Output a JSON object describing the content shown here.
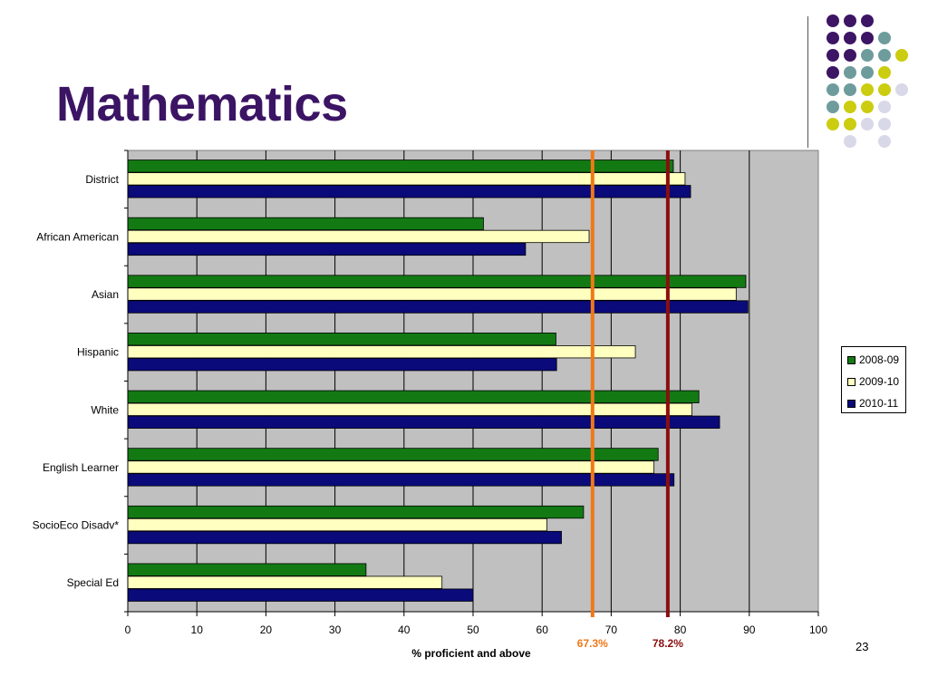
{
  "slide": {
    "title": "Mathematics",
    "page_number": "23"
  },
  "chart_data": {
    "type": "bar",
    "orientation": "horizontal",
    "categories": [
      "District",
      "African American",
      "Asian",
      "Hispanic",
      "White",
      "English Learner",
      "SocioEco Disadv*",
      "Special Ed"
    ],
    "series": [
      {
        "name": "2008-09",
        "color": "#137a13",
        "values": [
          79,
          51.5,
          89.5,
          62,
          82.7,
          76.8,
          66,
          34.5
        ]
      },
      {
        "name": "2009-10",
        "color": "#ffffc0",
        "values": [
          80.7,
          66.8,
          88.1,
          73.5,
          81.7,
          76.2,
          60.7,
          45.5
        ]
      },
      {
        "name": "2010-11",
        "color": "#0a0a7a",
        "values": [
          81.5,
          57.6,
          89.8,
          62.1,
          85.7,
          79.1,
          62.8,
          50
        ]
      }
    ],
    "xlim": [
      0,
      100
    ],
    "xticks": [
      0,
      10,
      20,
      30,
      40,
      50,
      60,
      70,
      80,
      90,
      100
    ],
    "xlabel": "% proficient and above",
    "ylabel": "",
    "grid": true,
    "plot_background": "#c0c0c0",
    "legend_position": "right",
    "reference_lines": [
      {
        "value": 67.3,
        "label": "67.3%",
        "color": "#f07818"
      },
      {
        "value": 78.2,
        "label": "78.2%",
        "color": "#8b0e0e"
      }
    ]
  },
  "decoration": {
    "dot_colors": {
      "purple": "#3d1565",
      "teal": "#6e9c9c",
      "olive": "#cccc10",
      "lavender": "#d8d8e8"
    }
  }
}
